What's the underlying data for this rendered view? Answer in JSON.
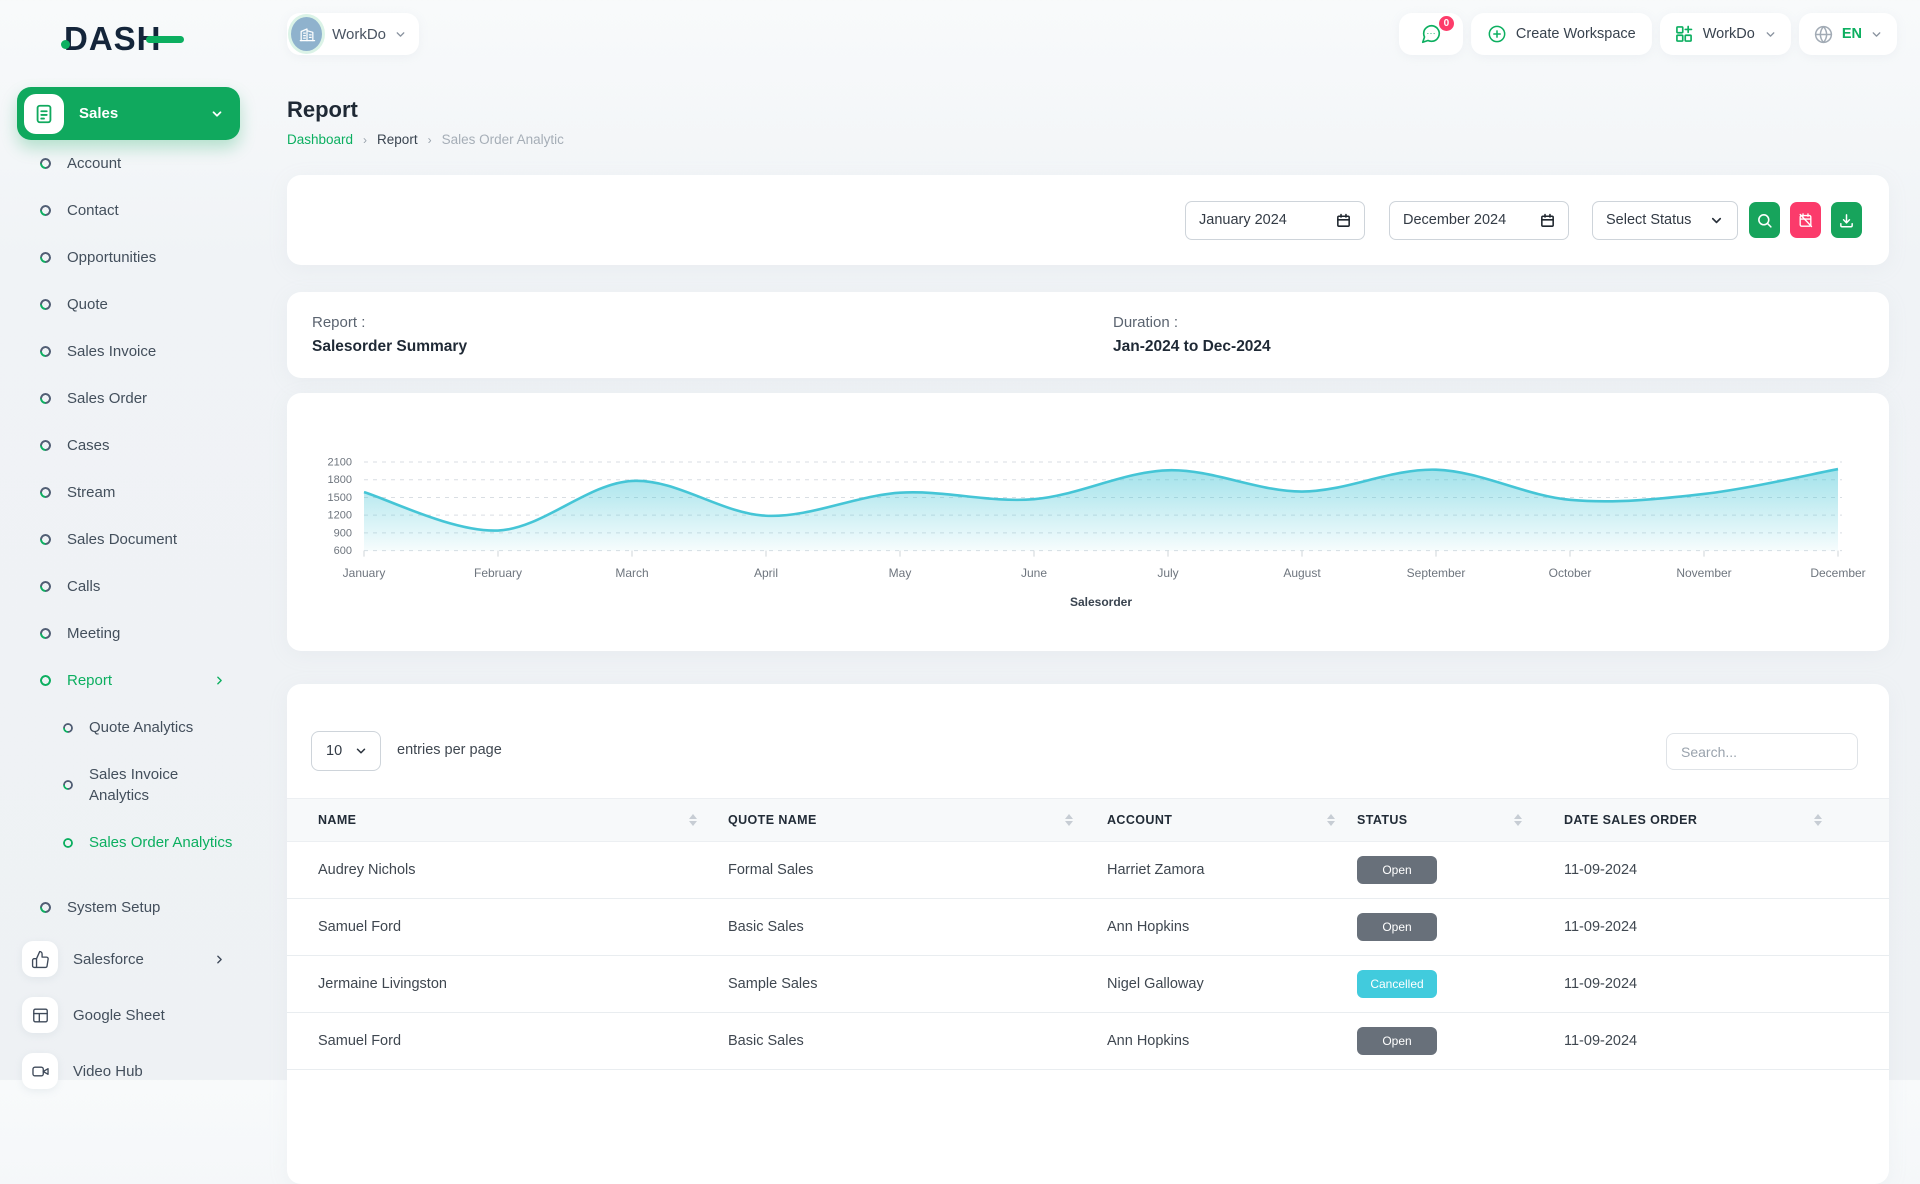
{
  "brand": {
    "name": "DASH"
  },
  "header": {
    "workspace_switcher": {
      "label": "WorkDo"
    },
    "chat": {
      "badge": "0"
    },
    "create_workspace_label": "Create Workspace",
    "workspace_menu_label": "WorkDo",
    "language": {
      "code": "EN"
    }
  },
  "sidebar": {
    "active_module": {
      "label": "Sales"
    },
    "items": [
      {
        "label": "Account",
        "type": "item"
      },
      {
        "label": "Contact",
        "type": "item"
      },
      {
        "label": "Opportunities",
        "type": "item"
      },
      {
        "label": "Quote",
        "type": "item"
      },
      {
        "label": "Sales Invoice",
        "type": "item"
      },
      {
        "label": "Sales Order",
        "type": "item"
      },
      {
        "label": "Cases",
        "type": "item"
      },
      {
        "label": "Stream",
        "type": "item"
      },
      {
        "label": "Sales Document",
        "type": "item"
      },
      {
        "label": "Calls",
        "type": "item"
      },
      {
        "label": "Meeting",
        "type": "item"
      },
      {
        "label": "Report",
        "type": "item",
        "active": true,
        "chevron": true
      },
      {
        "label": "Quote Analytics",
        "type": "sub"
      },
      {
        "label": "Sales Invoice Analytics",
        "type": "sub",
        "tall": true
      },
      {
        "label": "Sales Order Analytics",
        "type": "sub",
        "active": true
      },
      {
        "label": "System Setup",
        "type": "item",
        "gap": true
      },
      {
        "label": "Salesforce",
        "type": "boxed",
        "icon": "thumbs-up",
        "chevron": true
      },
      {
        "label": "Google Sheet",
        "type": "boxed",
        "icon": "sheet"
      },
      {
        "label": "Video Hub",
        "type": "boxed",
        "icon": "video"
      }
    ]
  },
  "page": {
    "title": "Report",
    "breadcrumb": [
      "Dashboard",
      "Report",
      "Sales Order Analytic"
    ]
  },
  "filters": {
    "start_date": "January 2024",
    "end_date": "December 2024",
    "status_placeholder": "Select Status"
  },
  "summary": {
    "report_label": "Report :",
    "report_value": "Salesorder Summary",
    "duration_label": "Duration :",
    "duration_value": "Jan-2024 to Dec-2024"
  },
  "chart_data": {
    "type": "area",
    "x": [
      "January",
      "February",
      "March",
      "April",
      "May",
      "June",
      "July",
      "August",
      "September",
      "October",
      "November",
      "December"
    ],
    "series": [
      {
        "name": "Salesorder",
        "values": [
          1590,
          940,
          1780,
          1190,
          1580,
          1470,
          1960,
          1600,
          1970,
          1460,
          1560,
          1980
        ]
      }
    ],
    "yticks": [
      600,
      900,
      1200,
      1500,
      1800,
      2100
    ],
    "ylim": [
      600,
      2100
    ],
    "xlabel": "Salesorder",
    "line_color": "#45c5d6",
    "grid": "dashed"
  },
  "table": {
    "entries_per_page": "10",
    "entries_label": "entries per page",
    "search_placeholder": "Search...",
    "columns": [
      "NAME",
      "QUOTE NAME",
      "ACCOUNT",
      "STATUS",
      "DATE SALES ORDER"
    ],
    "rows": [
      {
        "name": "Audrey Nichols",
        "quote": "Formal Sales",
        "account": "Harriet Zamora",
        "status": "Open",
        "date": "11-09-2024"
      },
      {
        "name": "Samuel Ford",
        "quote": "Basic Sales",
        "account": "Ann Hopkins",
        "status": "Open",
        "date": "11-09-2024"
      },
      {
        "name": "Jermaine Livingston",
        "quote": "Sample Sales",
        "account": "Nigel Galloway",
        "status": "Cancelled",
        "date": "11-09-2024"
      },
      {
        "name": "Samuel Ford",
        "quote": "Basic Sales",
        "account": "Ann Hopkins",
        "status": "Open",
        "date": "11-09-2024"
      }
    ],
    "status_colors": {
      "Open": "#68707a",
      "Cancelled": "#41cbdd"
    }
  }
}
